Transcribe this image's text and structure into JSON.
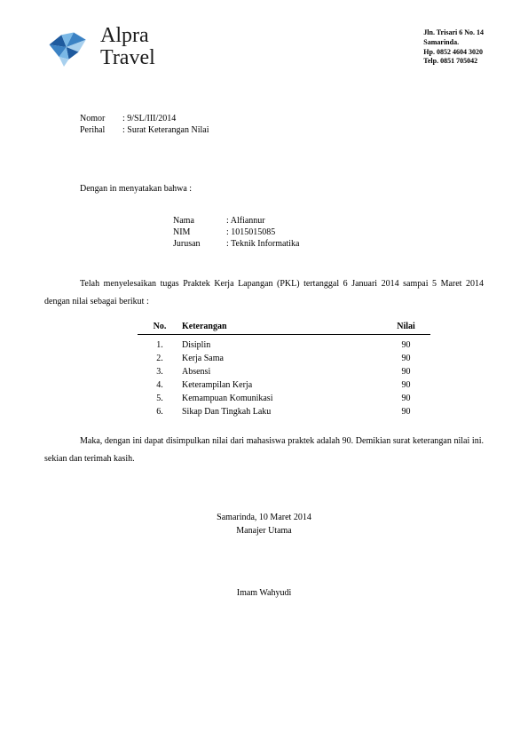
{
  "company": {
    "name_line1": "Alpra",
    "name_line2": "Travel",
    "address_line1": "Jln. Trisari 6 No. 14",
    "address_line2": "Samarinda.",
    "address_line3": "Hp. 0852 4604 3020",
    "address_line4": "Telp. 0851 705042",
    "logo_colors": {
      "dark": "#1e5a9e",
      "mid": "#3b82c4",
      "light": "#7ab8e6",
      "pale": "#a8d0ee"
    }
  },
  "meta": {
    "nomor_label": "Nomor",
    "nomor_value": "9/SL/III/2014",
    "perihal_label": "Perihal",
    "perihal_value": "Surat Keterangan Nilai"
  },
  "intro": "Dengan in menyatakan bahwa :",
  "student": {
    "nama_label": "Nama",
    "nama_value": "Alfiannur",
    "nim_label": "NIM",
    "nim_value": "1015015085",
    "jurusan_label": "Jurusan",
    "jurusan_value": "Teknik Informatika"
  },
  "body_paragraph": "Telah menyelesaikan tugas Praktek Kerja Lapangan (PKL)  tertanggal 6 Januari 2014 sampai  5 Maret 2014 dengan nilai sebagai berikut :",
  "grades": {
    "headers": {
      "no": "No.",
      "keterangan": "Keterangan",
      "nilai": "Nilai"
    },
    "rows": [
      {
        "no": "1.",
        "keterangan": "Disiplin",
        "nilai": "90"
      },
      {
        "no": "2.",
        "keterangan": "Kerja Sama",
        "nilai": "90"
      },
      {
        "no": "3.",
        "keterangan": "Absensi",
        "nilai": "90"
      },
      {
        "no": "4.",
        "keterangan": "Keterampilan Kerja",
        "nilai": "90"
      },
      {
        "no": "5.",
        "keterangan": "Kemampuan Komunikasi",
        "nilai": "90"
      },
      {
        "no": "6.",
        "keterangan": "Sikap Dan Tingkah Laku",
        "nilai": "90"
      }
    ]
  },
  "conclusion": "Maka, dengan ini dapat disimpulkan nilai dari mahasiswa praktek adalah 90. Demikian surat keterangan nilai ini. sekian dan terimah kasih.",
  "signature": {
    "place_date": "Samarinda, 10 Maret 2014",
    "title": "Manajer Utama",
    "name": "Imam Wahyudi"
  }
}
